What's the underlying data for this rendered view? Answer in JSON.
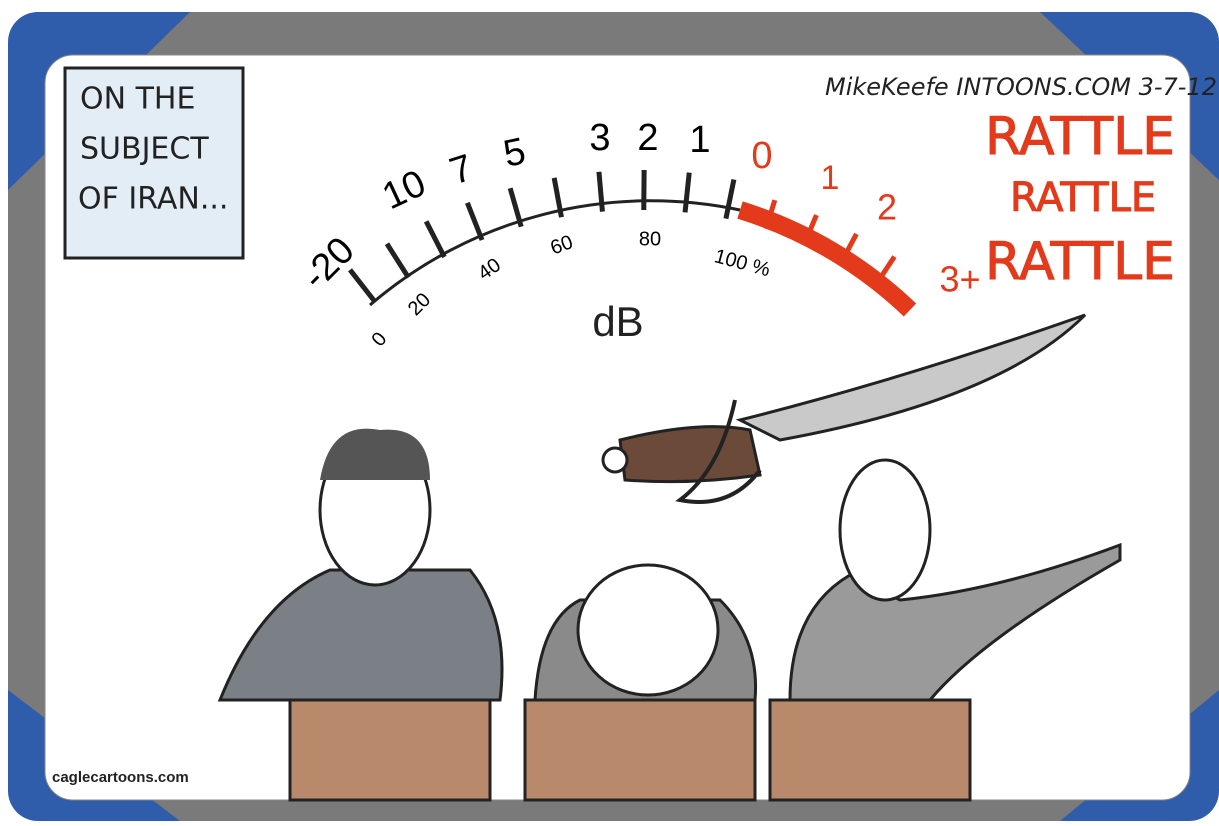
{
  "caption": {
    "lines": [
      "ON THE",
      "SUBJECT",
      "OF IRAN..."
    ]
  },
  "signature": "MikeKeefe INTOONS.COM 3-7-12",
  "meter": {
    "upper_labels": [
      "-20",
      "10",
      "7",
      "5",
      "3",
      "2",
      "1"
    ],
    "red_labels": [
      "0",
      "1",
      "2",
      "3+"
    ],
    "percent_labels": [
      "0",
      "20",
      "40",
      "60",
      "80",
      "100 %"
    ],
    "unit": "dB"
  },
  "sound": [
    "RATTLE",
    "RATTLE",
    "RATTLE"
  ],
  "credit": "caglecartoons.com"
}
